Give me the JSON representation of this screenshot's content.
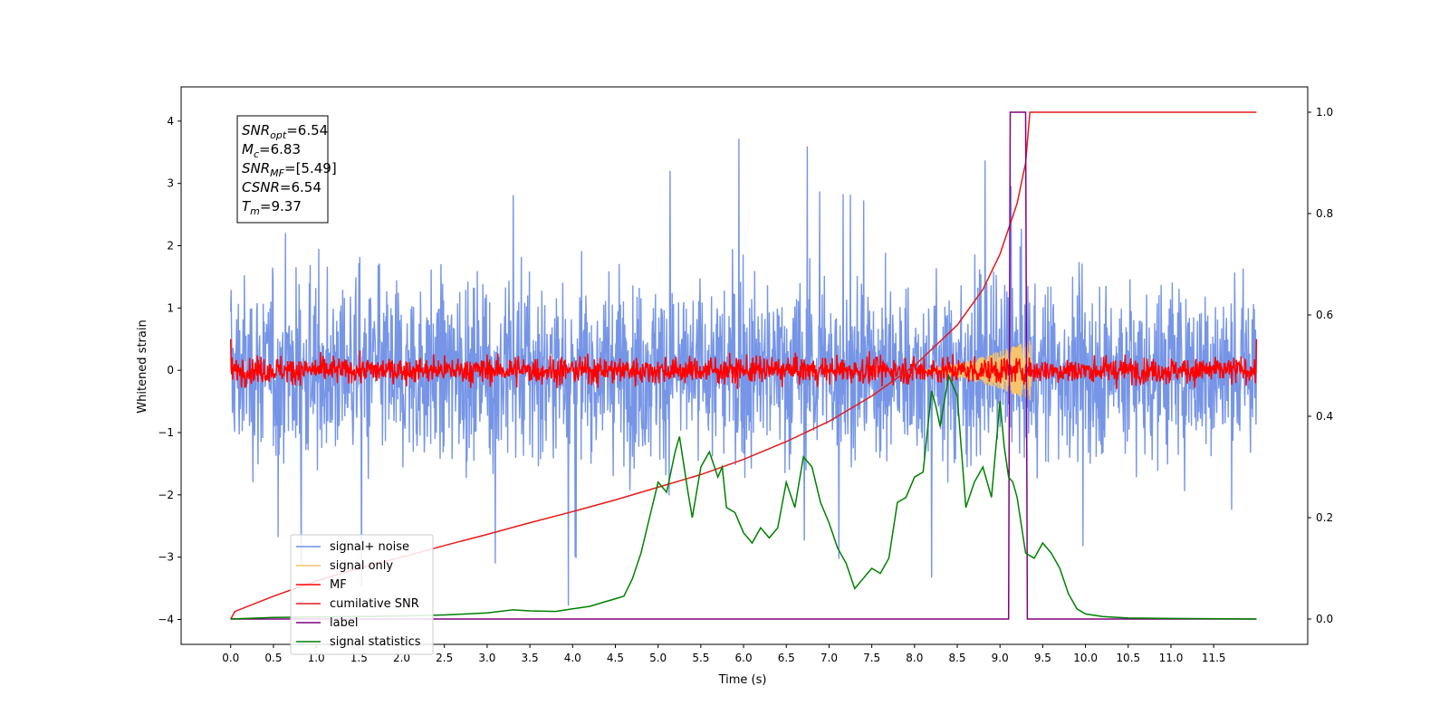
{
  "chart_data": {
    "type": "line",
    "title": "",
    "xlabel": "Time (s)",
    "ylabel": "Whitened strain",
    "ylabel_right": "",
    "xlim": [
      -0.58,
      12.6
    ],
    "ylim": [
      -4.4,
      4.55
    ],
    "y2lim": [
      -0.05,
      1.05
    ],
    "x_ticks": [
      "0.0",
      "0.5",
      "1.0",
      "1.5",
      "2.0",
      "2.5",
      "3.0",
      "3.5",
      "4.0",
      "4.5",
      "5.0",
      "5.5",
      "6.0",
      "6.5",
      "7.0",
      "7.5",
      "8.0",
      "8.5",
      "9.0",
      "9.5",
      "10.0",
      "10.5",
      "11.0",
      "11.5"
    ],
    "y_ticks": [
      "4",
      "3",
      "2",
      "1",
      "0",
      "−1",
      "−2",
      "−3",
      "−4"
    ],
    "y2_ticks": [
      "1.0",
      "0.8",
      "0.6",
      "0.4",
      "0.2",
      "0.0"
    ],
    "grid": false,
    "legend_position": "lower-left",
    "colors": {
      "signal_noise": "#6f8fe6",
      "signal_only": "#f5c46c",
      "mf": "#ff0000",
      "cumulative_snr": "#e61a1a",
      "label": "#800080",
      "signal_statistics": "#008000"
    },
    "series": [
      {
        "name": "signal+ noise",
        "axis": "left",
        "kind": "noise",
        "x_start": 0.0,
        "x_end": 12.0,
        "sigma": 1.0,
        "peak_range": [
          -3.9,
          4.1
        ]
      },
      {
        "name": "signal only",
        "axis": "left",
        "kind": "chirp",
        "x_start": 8.0,
        "x_end": 9.37,
        "peak_amplitude": 0.5
      },
      {
        "name": "MF",
        "axis": "left",
        "kind": "noise",
        "x_start": 0.0,
        "x_end": 12.0,
        "sigma": 0.15,
        "peak_range": [
          -0.3,
          0.5
        ]
      },
      {
        "name": "cumilative SNR",
        "axis": "right",
        "x": [
          0.0,
          0.05,
          0.5,
          1.0,
          1.5,
          2.0,
          2.5,
          3.0,
          3.5,
          4.0,
          4.5,
          5.0,
          5.5,
          6.0,
          6.5,
          7.0,
          7.5,
          8.0,
          8.5,
          8.8,
          9.0,
          9.2,
          9.3,
          9.35,
          9.5,
          10.0,
          11.0,
          12.0
        ],
        "y": [
          0.0,
          0.015,
          0.045,
          0.075,
          0.1,
          0.122,
          0.145,
          0.167,
          0.19,
          0.212,
          0.235,
          0.26,
          0.285,
          0.315,
          0.35,
          0.39,
          0.44,
          0.5,
          0.58,
          0.65,
          0.72,
          0.82,
          0.9,
          1.0,
          1.0,
          1.0,
          1.0,
          1.0
        ]
      },
      {
        "name": "label",
        "axis": "right",
        "x": [
          0.0,
          9.1,
          9.12,
          9.3,
          9.32,
          12.0
        ],
        "y": [
          0.0,
          0.0,
          1.0,
          1.0,
          0.0,
          0.0
        ]
      },
      {
        "name": "signal statistics",
        "axis": "right",
        "x": [
          0.0,
          0.5,
          1.0,
          1.5,
          2.0,
          2.5,
          3.0,
          3.3,
          3.5,
          3.8,
          4.0,
          4.2,
          4.4,
          4.5,
          4.6,
          4.7,
          4.8,
          4.9,
          5.0,
          5.1,
          5.2,
          5.25,
          5.35,
          5.4,
          5.5,
          5.6,
          5.7,
          5.75,
          5.8,
          5.9,
          6.0,
          6.1,
          6.2,
          6.3,
          6.4,
          6.5,
          6.6,
          6.7,
          6.75,
          6.8,
          6.9,
          7.0,
          7.1,
          7.2,
          7.3,
          7.4,
          7.5,
          7.6,
          7.7,
          7.8,
          7.9,
          8.0,
          8.1,
          8.2,
          8.25,
          8.3,
          8.4,
          8.5,
          8.6,
          8.7,
          8.8,
          8.9,
          9.0,
          9.05,
          9.1,
          9.15,
          9.2,
          9.3,
          9.4,
          9.5,
          9.6,
          9.7,
          9.8,
          9.9,
          10.0,
          10.2,
          10.5,
          11.0,
          12.0
        ],
        "y": [
          0.0,
          0.003,
          0.004,
          0.005,
          0.006,
          0.008,
          0.012,
          0.018,
          0.016,
          0.015,
          0.02,
          0.025,
          0.035,
          0.04,
          0.045,
          0.08,
          0.13,
          0.2,
          0.27,
          0.25,
          0.33,
          0.36,
          0.25,
          0.2,
          0.3,
          0.33,
          0.28,
          0.3,
          0.22,
          0.21,
          0.17,
          0.15,
          0.18,
          0.16,
          0.18,
          0.27,
          0.22,
          0.32,
          0.31,
          0.3,
          0.23,
          0.19,
          0.14,
          0.11,
          0.06,
          0.08,
          0.1,
          0.09,
          0.12,
          0.23,
          0.24,
          0.28,
          0.29,
          0.45,
          0.42,
          0.38,
          0.48,
          0.44,
          0.22,
          0.27,
          0.3,
          0.24,
          0.43,
          0.34,
          0.28,
          0.27,
          0.24,
          0.13,
          0.12,
          0.15,
          0.13,
          0.1,
          0.05,
          0.02,
          0.01,
          0.005,
          0.002,
          0.001,
          0.0
        ]
      }
    ],
    "annotation": {
      "lines": [
        {
          "base": "SNR",
          "sub": "opt",
          "value": "=6.54"
        },
        {
          "base": "M",
          "sub": "c",
          "value": "=6.83"
        },
        {
          "base": "SNR",
          "sub": "MF",
          "value": "=[5.49]"
        },
        {
          "base": "CSNR",
          "sub": "",
          "value": "=6.54"
        },
        {
          "base": "T",
          "sub": "m",
          "value": "=9.37"
        }
      ]
    }
  }
}
